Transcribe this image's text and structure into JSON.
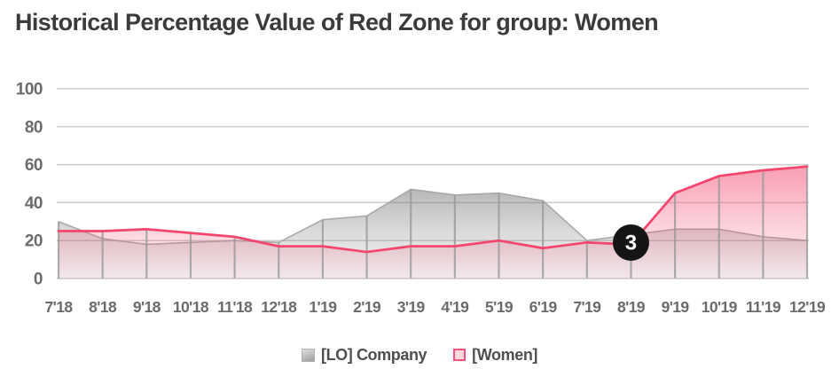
{
  "title": "Historical Percentage Value of Red Zone for group: Women",
  "chart_data": {
    "type": "area",
    "categories": [
      "7'18",
      "8'18",
      "9'18",
      "10'18",
      "11'18",
      "12'18",
      "1'19",
      "2'19",
      "3'19",
      "4'19",
      "5'19",
      "6'19",
      "7'19",
      "8'19",
      "9'19",
      "10'19",
      "11'19",
      "12'19"
    ],
    "series": [
      {
        "name": "[LO] Company",
        "color": "#a5a5a5",
        "fill_top": "rgba(112,112,112,0.50)",
        "fill_mid": "rgba(128,128,128,0.28)",
        "fill_bottom": "rgba(140,140,140,0.10)",
        "values": [
          30,
          21,
          18,
          19,
          20,
          19,
          31,
          33,
          47,
          44,
          45,
          41,
          20,
          23,
          26,
          26,
          22,
          20
        ]
      },
      {
        "name": "[Women]",
        "color": "#f4456d",
        "fill_top": "rgba(244,69,109,0.52)",
        "fill_mid": "rgba(244,69,109,0.26)",
        "fill_bottom": "rgba(244,69,109,0.06)",
        "values": [
          25,
          25,
          26,
          24,
          22,
          17,
          17,
          14,
          17,
          17,
          20,
          16,
          19,
          18,
          45,
          54,
          57,
          59
        ]
      }
    ],
    "title": "Historical Percentage Value of Red Zone for group: Women",
    "xlabel": "",
    "ylabel": "",
    "ylim": [
      0,
      100
    ],
    "y_ticks": [
      0,
      20,
      40,
      60,
      80,
      100
    ],
    "grid": "horizontal lines + vertical segments at each data point clipped to area height",
    "legend_position": "bottom-center",
    "annotation": {
      "label": "3",
      "category": "8'19",
      "series": "[Women]",
      "bg_color": "#151515",
      "text_color": "#ffffff"
    }
  },
  "legend": {
    "items": [
      {
        "label": "[LO] Company",
        "swatch": "gray-gradient-square"
      },
      {
        "label": "[Women]",
        "swatch": "pink-outline-square"
      }
    ]
  },
  "colors": {
    "grid_line": "#cccccc",
    "vertical_segment": "#9a9a9a",
    "axis_text": "#6b6b6b",
    "title_text": "#3b3b3b",
    "legend_text": "#4f4f4f",
    "background": "#ffffff"
  }
}
